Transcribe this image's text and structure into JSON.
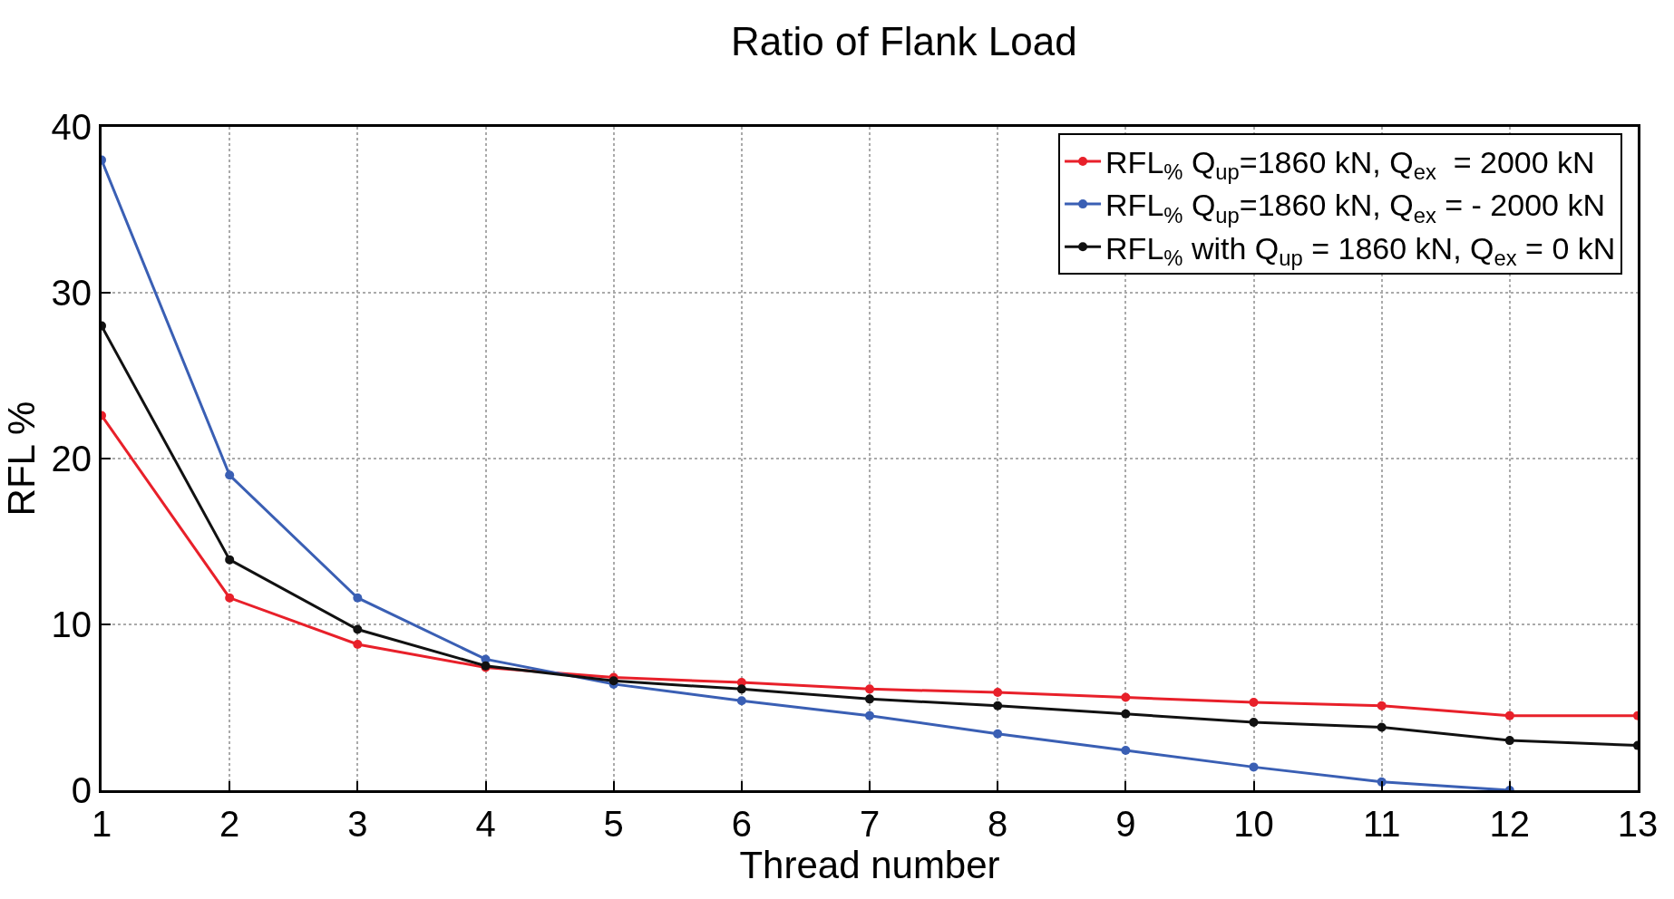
{
  "chart_data": {
    "type": "line",
    "title": "Ratio of Flank Load",
    "xlabel": "Thread number",
    "ylabel": "RFL %",
    "x": [
      1,
      2,
      3,
      4,
      5,
      6,
      7,
      8,
      9,
      10,
      11,
      12,
      13
    ],
    "series": [
      {
        "name": "RFL$_{%}$ Q$_{up}$=1860 kN, Q$_{ex}$  = 2000 kN",
        "color": "#e8202a",
        "values": [
          22.6,
          11.6,
          8.8,
          7.4,
          6.8,
          6.5,
          6.1,
          5.9,
          5.6,
          5.3,
          5.1,
          4.5,
          4.5
        ]
      },
      {
        "name": "RFL$_{%}$ Q$_{up}$=1860 kN, Q$_{ex}$ = - 2000 kN",
        "color": "#3a5fb4",
        "values": [
          38,
          19,
          11.6,
          7.9,
          6.4,
          5.4,
          4.5,
          3.4,
          2.4,
          1.4,
          0.5,
          0,
          null
        ]
      },
      {
        "name": "RFL$_{%}$ with Q$_{up}$ = 1860 kN, Q$_{ex}$ = 0 kN",
        "color": "#111111",
        "values": [
          28,
          13.9,
          9.7,
          7.5,
          6.6,
          6.1,
          5.5,
          5.1,
          4.6,
          4.1,
          3.8,
          3.0,
          2.7
        ]
      }
    ],
    "xlim": [
      1,
      13
    ],
    "xticks": [
      1,
      2,
      3,
      4,
      5,
      6,
      7,
      8,
      9,
      10,
      11,
      12,
      13
    ],
    "ylim": [
      0,
      40
    ],
    "yticks": [
      0,
      10,
      20,
      30,
      40
    ],
    "grid": true,
    "legend": "top right",
    "marker": "circle",
    "line_style": "solid"
  }
}
